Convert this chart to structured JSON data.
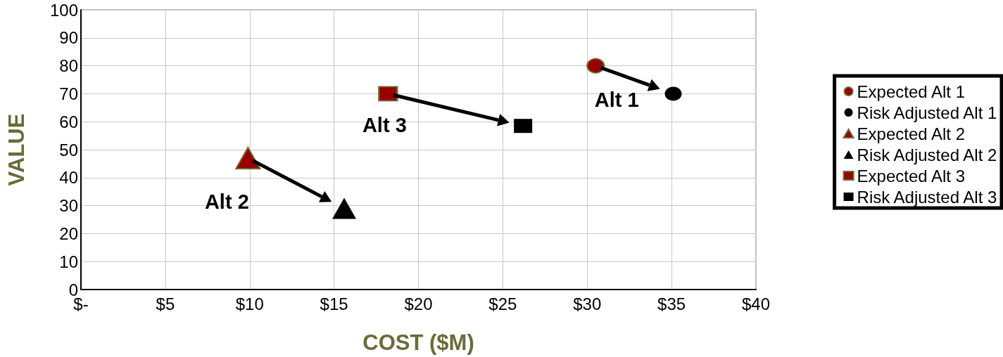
{
  "chart_data": {
    "type": "scatter",
    "xlabel": "COST ($M)",
    "ylabel": "VALUE",
    "xlim": [
      0,
      40
    ],
    "xticks": [
      {
        "value": 0,
        "label": "$-"
      },
      {
        "value": 5,
        "label": "$5"
      },
      {
        "value": 10,
        "label": "$10"
      },
      {
        "value": 15,
        "label": "$15"
      },
      {
        "value": 20,
        "label": "$20"
      },
      {
        "value": 25,
        "label": "$25"
      },
      {
        "value": 30,
        "label": "$30"
      },
      {
        "value": 35,
        "label": "$35"
      },
      {
        "value": 40,
        "label": "$40"
      }
    ],
    "ylim": [
      0,
      100
    ],
    "yticks": [
      0,
      10,
      20,
      30,
      40,
      50,
      60,
      70,
      80,
      90,
      100
    ],
    "grid": true,
    "legend": "right",
    "series": [
      {
        "name": "Expected Alt 1",
        "color": "#990000",
        "marker": "circle",
        "x": [
          30.5
        ],
        "values": [
          80
        ]
      },
      {
        "name": "Risk Adjusted Alt 1",
        "color": "#000000",
        "marker": "circle",
        "x": [
          35.1
        ],
        "values": [
          70
        ]
      },
      {
        "name": "Expected Alt 2",
        "color": "#990000",
        "marker": "triangle",
        "x": [
          9.9
        ],
        "values": [
          47
        ]
      },
      {
        "name": "Risk Adjusted Alt 2",
        "color": "#000000",
        "marker": "triangle",
        "x": [
          15.6
        ],
        "values": [
          29
        ]
      },
      {
        "name": "Expected Alt 3",
        "color": "#990000",
        "marker": "square",
        "x": [
          18.2
        ],
        "values": [
          70
        ]
      },
      {
        "name": "Risk Adjusted Alt 3",
        "color": "#000000",
        "marker": "square",
        "x": [
          26.2
        ],
        "values": [
          58.5
        ]
      }
    ],
    "annotations": [
      "Alt 1",
      "Alt 2",
      "Alt 3"
    ]
  }
}
